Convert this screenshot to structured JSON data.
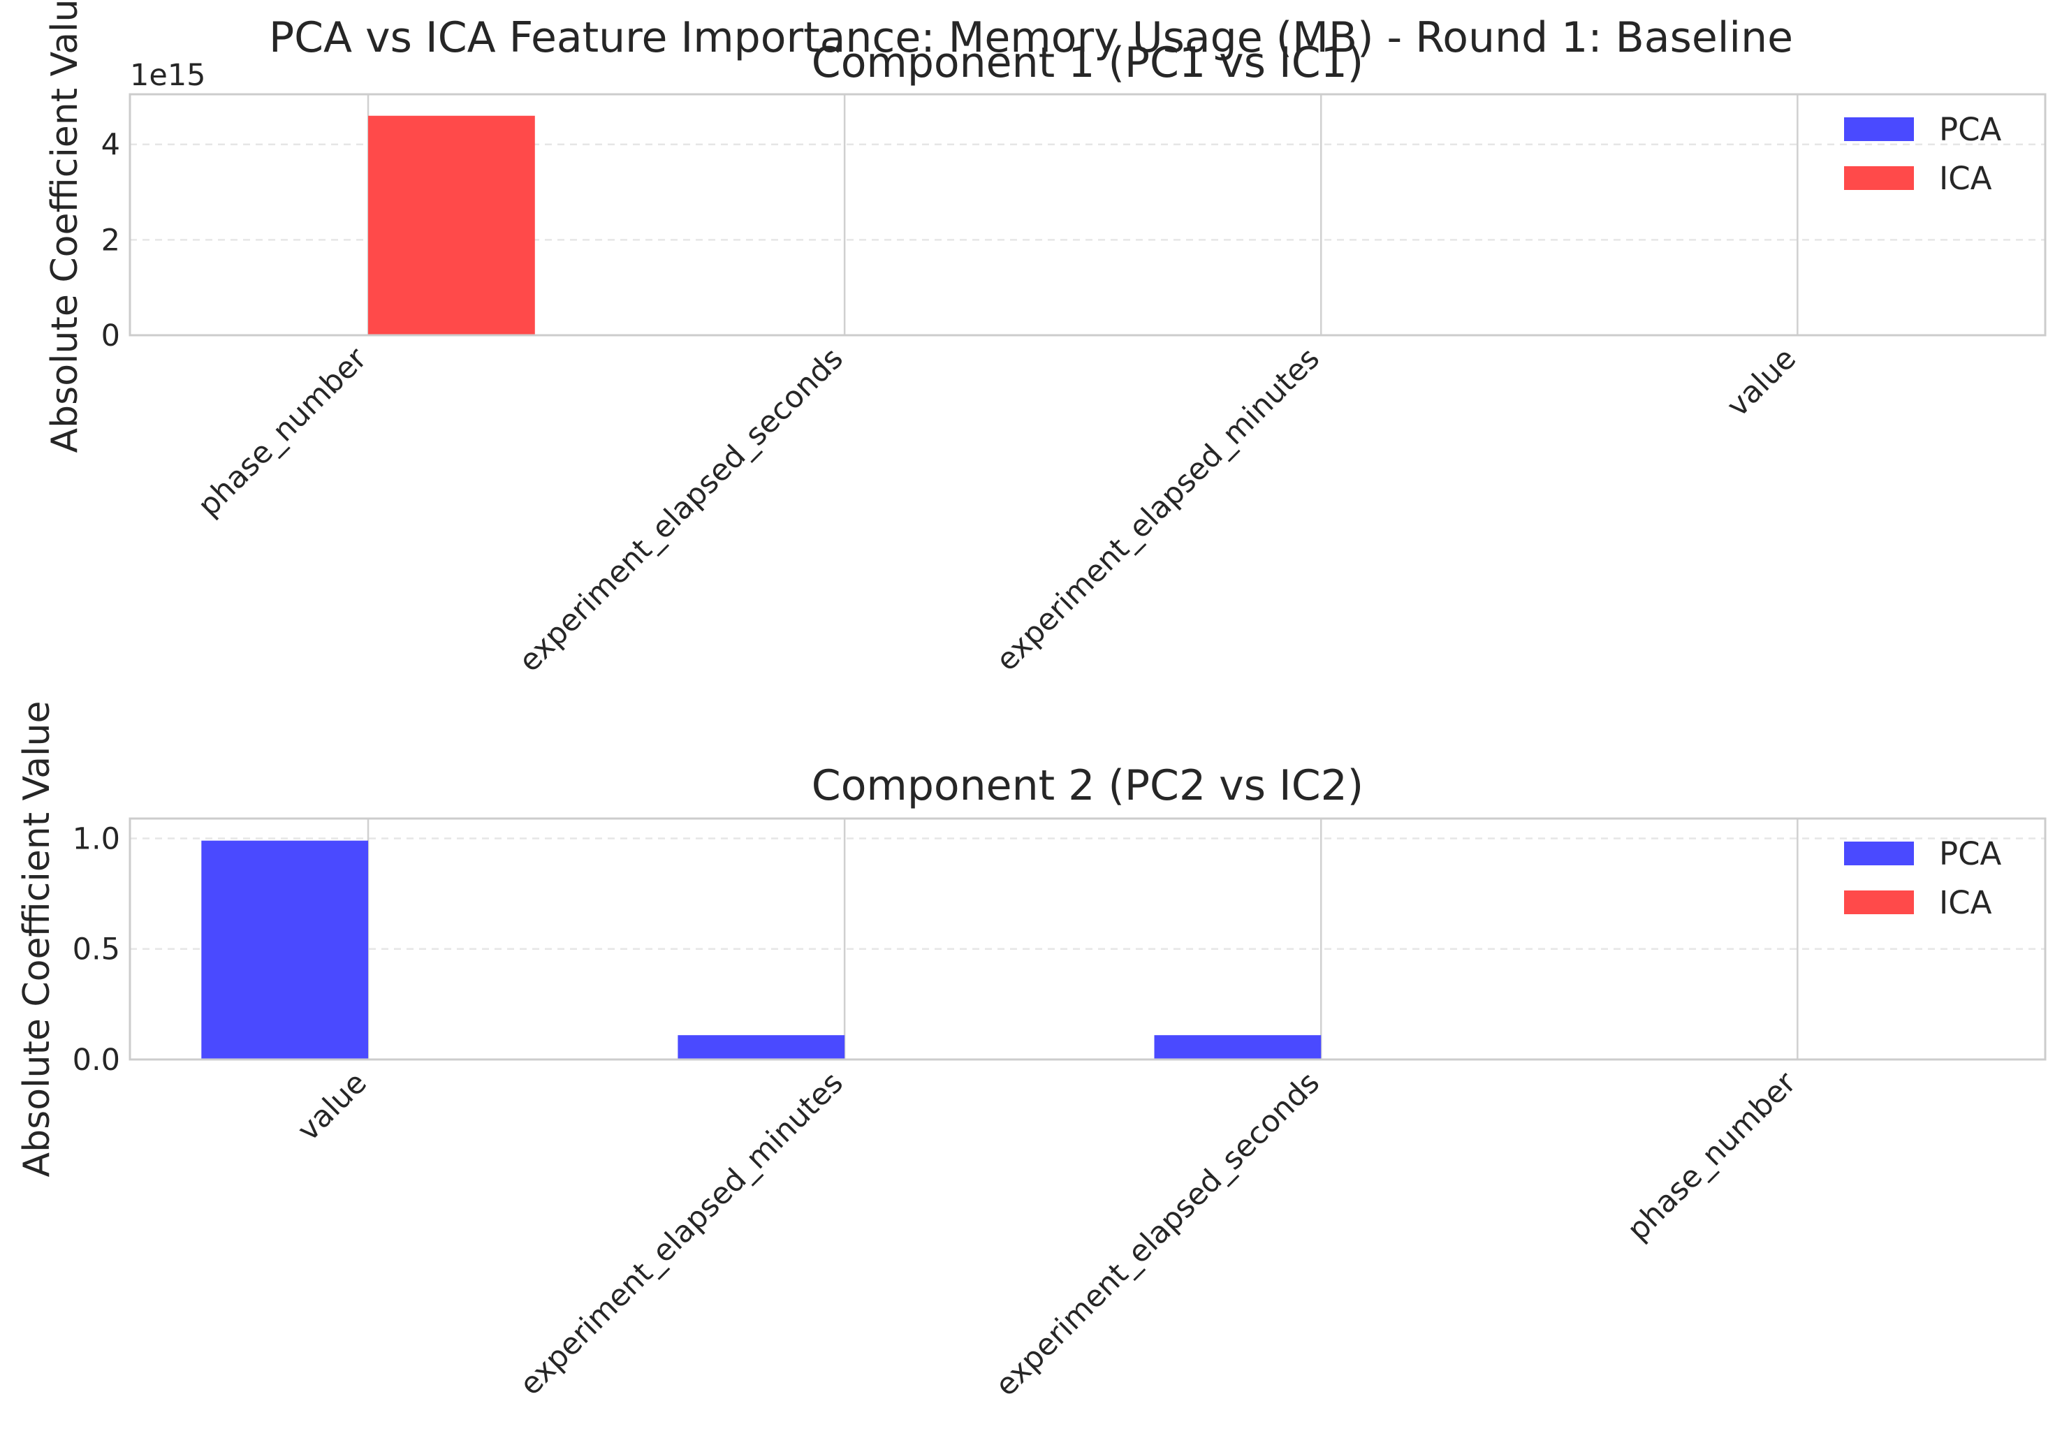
{
  "suptitle": "PCA vs ICA Feature Importance: Memory Usage (MB) - Round 1: Baseline",
  "colors": {
    "PCA": "#4a4aff",
    "ICA": "#ff4a4a"
  },
  "chart_data": [
    {
      "type": "bar",
      "title": "Component 1 (PC1 vs IC1)",
      "ylabel": "Absolute Coefficient Value",
      "xlabel": "",
      "offset_label": "1e15",
      "ylim": [
        0,
        5.05
      ],
      "yticks": [
        0,
        2,
        4
      ],
      "ytick_labels": [
        "0",
        "2",
        "4"
      ],
      "grid": true,
      "legend": "top-right",
      "categories": [
        "phase_number",
        "experiment_elapsed_seconds",
        "experiment_elapsed_minutes",
        "value"
      ],
      "series": [
        {
          "name": "PCA",
          "values": [
            0,
            0,
            0,
            0
          ]
        },
        {
          "name": "ICA",
          "values": [
            4.6,
            0,
            0,
            0
          ]
        }
      ]
    },
    {
      "type": "bar",
      "title": "Component 2 (PC2 vs IC2)",
      "ylabel": "Absolute Coefficient Value",
      "xlabel": "",
      "ylim": [
        0,
        1.09
      ],
      "yticks": [
        0,
        0.5,
        1.0
      ],
      "ytick_labels": [
        "0.0",
        "0.5",
        "1.0"
      ],
      "grid": true,
      "legend": "top-right",
      "categories": [
        "value",
        "experiment_elapsed_minutes",
        "experiment_elapsed_seconds",
        "phase_number"
      ],
      "series": [
        {
          "name": "PCA",
          "values": [
            0.99,
            0.11,
            0.11,
            0.0
          ]
        },
        {
          "name": "ICA",
          "values": [
            0,
            0,
            0,
            0
          ]
        }
      ]
    }
  ]
}
